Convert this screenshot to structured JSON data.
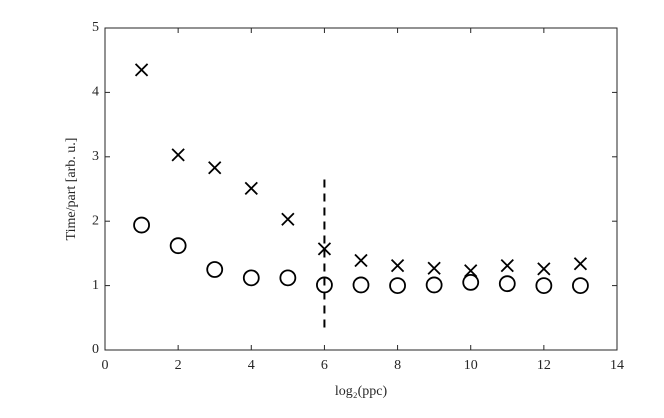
{
  "chart_data": {
    "type": "scatter",
    "xlabel": "log₂(ppc)",
    "ylabel": "Time/part [arb. u.]",
    "x": [
      1,
      2,
      3,
      4,
      5,
      6,
      7,
      8,
      9,
      10,
      11,
      12,
      13
    ],
    "series": [
      {
        "marker": "x",
        "color": "#000000",
        "values": [
          4.35,
          3.03,
          2.83,
          2.51,
          2.03,
          1.57,
          1.39,
          1.31,
          1.27,
          1.23,
          1.31,
          1.26,
          1.34
        ]
      },
      {
        "marker": "circle",
        "color": "#000000",
        "values": [
          1.94,
          1.62,
          1.25,
          1.12,
          1.12,
          1.01,
          1.01,
          1.0,
          1.01,
          1.05,
          1.03,
          1.0,
          1.0
        ]
      }
    ],
    "reference_line": {
      "x": 6,
      "y": [
        0.35,
        2.72
      ],
      "style": "dashed",
      "color": "#000000"
    },
    "xlim": [
      0,
      14
    ],
    "xticks": [
      0,
      2,
      4,
      6,
      8,
      10,
      12,
      14
    ],
    "ylim": [
      0,
      5
    ],
    "yticks": [
      0,
      1,
      2,
      3,
      4,
      5
    ],
    "grid": false
  }
}
